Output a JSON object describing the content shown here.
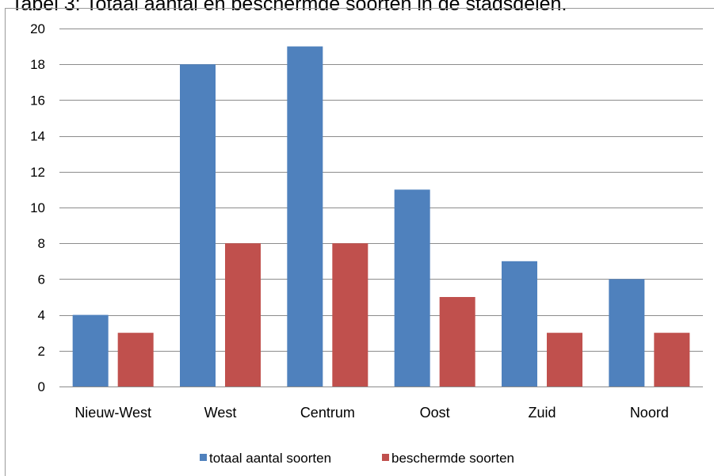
{
  "caption": "Tabel 3: Totaal aantal en beschermde soorten in de stadsdelen.",
  "chart_data": {
    "type": "bar",
    "categories": [
      "Nieuw-West",
      "West",
      "Centrum",
      "Oost",
      "Zuid",
      "Noord"
    ],
    "series": [
      {
        "name": "totaal aantal soorten",
        "values": [
          4,
          18,
          19,
          11,
          7,
          6
        ],
        "color": "#4f81bd"
      },
      {
        "name": "beschermde soorten",
        "values": [
          3,
          8,
          8,
          5,
          3,
          3
        ],
        "color": "#c0504d"
      }
    ],
    "ylim": [
      0,
      20
    ],
    "yticks": [
      0,
      2,
      4,
      6,
      8,
      10,
      12,
      14,
      16,
      18,
      20
    ],
    "grid": true,
    "legend": "bottom"
  }
}
